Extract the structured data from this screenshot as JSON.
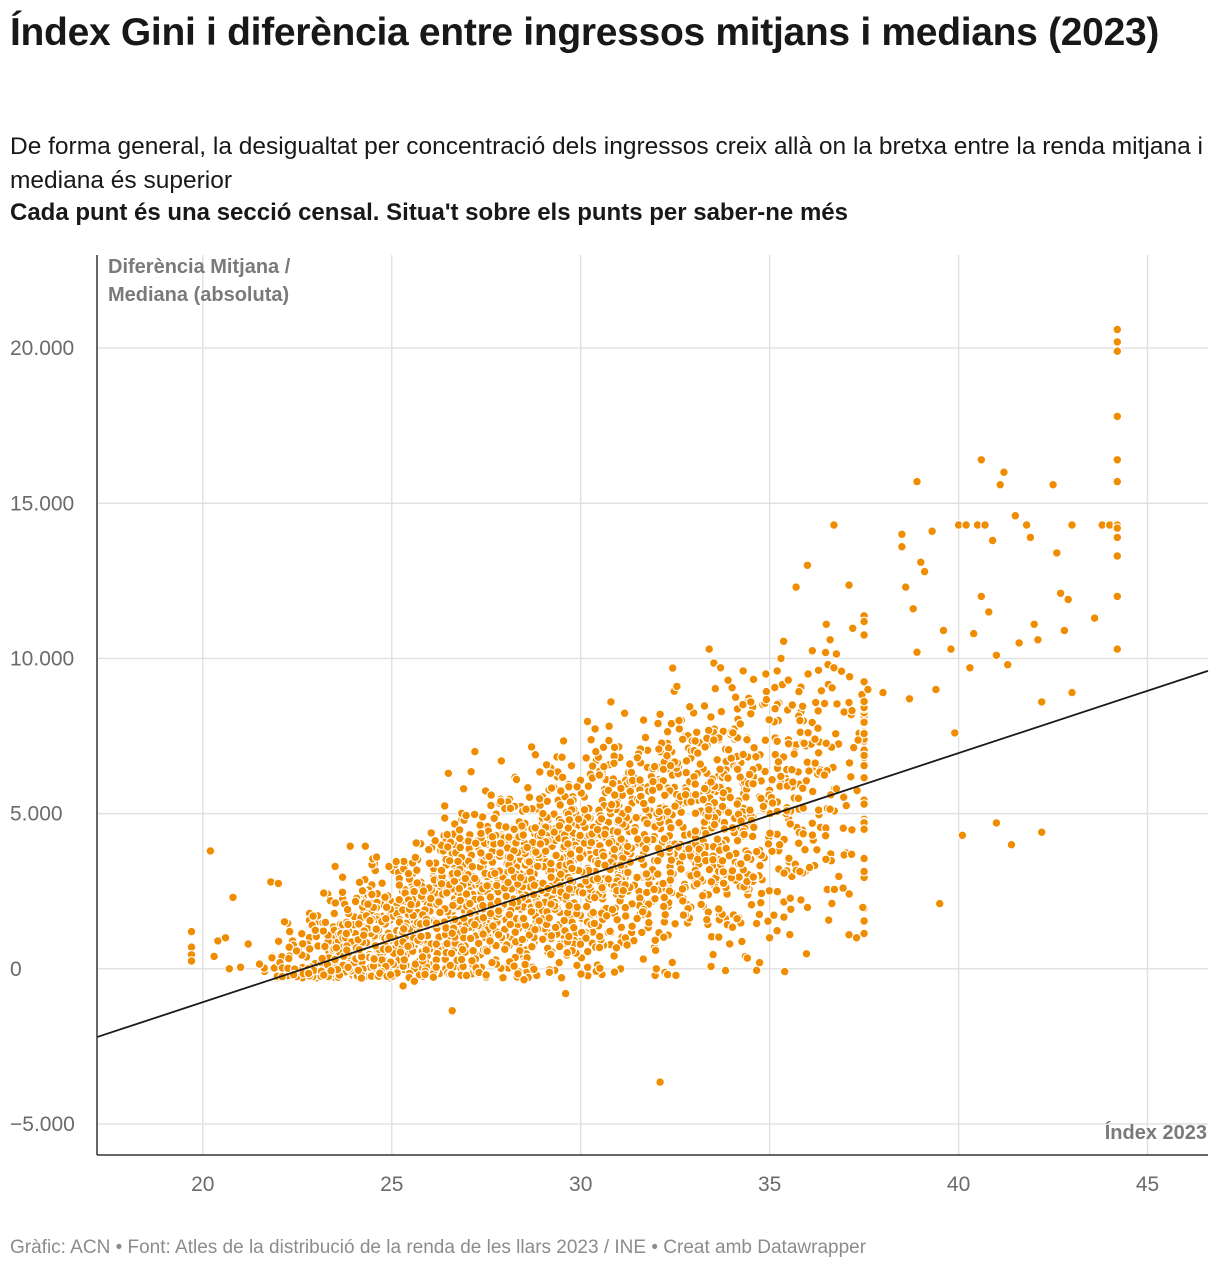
{
  "header": {
    "title": "Índex Gini i diferència entre ingressos mitjans i medians (2023)",
    "subtitle": "De forma general, la desigualtat per concentració dels ingressos creix allà on la bretxa entre la renda mitjana i mediana és superior",
    "note": "Cada punt és una secció censal. Situa't sobre els punts per saber-ne més"
  },
  "footer": {
    "text": "Gràfic: ACN • Font: Atles de la distribució de la renda de les llars 2023 / INE • Creat amb Datawrapper"
  },
  "colors": {
    "points": "#f08c00",
    "trend": "#1a1a1a",
    "grid": "#e0e0e0"
  },
  "chart_data": {
    "type": "scatter",
    "xlabel": "Índex 2023",
    "ylabel_lines": [
      "Diferència Mitjana /",
      "Mediana (absoluta)"
    ],
    "xlim": [
      17.2,
      46.6
    ],
    "ylim": [
      -6000,
      23000
    ],
    "x_ticks": [
      20,
      25,
      30,
      35,
      40,
      45
    ],
    "x_tick_labels": [
      "20",
      "25",
      "30",
      "35",
      "40",
      "45"
    ],
    "y_ticks": [
      20000,
      15000,
      10000,
      5000,
      0,
      -5000
    ],
    "y_tick_labels": [
      "20.000",
      "15.000",
      "10.000",
      "5.000",
      "0",
      "−5.000"
    ],
    "grid": true,
    "trendline": {
      "x": [
        17.2,
        46.6
      ],
      "y": [
        -2200,
        9600
      ]
    },
    "dense_cloud": {
      "approx_count": 2600,
      "x_range": [
        21.5,
        37.5
      ],
      "slope": 430,
      "intercept": -9600
    },
    "points": [
      [
        19.7,
        1200
      ],
      [
        19.7,
        700
      ],
      [
        19.7,
        450
      ],
      [
        19.7,
        250
      ],
      [
        20.2,
        3800
      ],
      [
        20.3,
        400
      ],
      [
        20.4,
        900
      ],
      [
        20.6,
        1000
      ],
      [
        20.7,
        0
      ],
      [
        20.8,
        2300
      ],
      [
        21.0,
        50
      ],
      [
        21.2,
        800
      ],
      [
        21.5,
        150
      ],
      [
        21.8,
        2800
      ],
      [
        22.0,
        2750
      ],
      [
        22.1,
        -250
      ],
      [
        22.3,
        1200
      ],
      [
        22.8,
        -150
      ],
      [
        23.2,
        -200
      ],
      [
        23.5,
        3300
      ],
      [
        23.7,
        2950
      ],
      [
        23.9,
        3950
      ],
      [
        24.2,
        -300
      ],
      [
        24.3,
        3950
      ],
      [
        24.6,
        3600
      ],
      [
        25.3,
        -550
      ],
      [
        25.6,
        -400
      ],
      [
        26.0,
        3400
      ],
      [
        26.4,
        5250
      ],
      [
        26.5,
        6300
      ],
      [
        26.6,
        -1350
      ],
      [
        26.8,
        4200
      ],
      [
        26.9,
        5800
      ],
      [
        27.1,
        6350
      ],
      [
        27.2,
        7000
      ],
      [
        27.5,
        -200
      ],
      [
        27.9,
        6700
      ],
      [
        28.3,
        6100
      ],
      [
        28.5,
        -350
      ],
      [
        28.7,
        7150
      ],
      [
        28.8,
        6900
      ],
      [
        29.0,
        5000
      ],
      [
        29.2,
        6300
      ],
      [
        29.6,
        -800
      ],
      [
        29.7,
        4800
      ],
      [
        30.4,
        7000
      ],
      [
        30.8,
        8600
      ],
      [
        30.9,
        5600
      ],
      [
        31.3,
        6600
      ],
      [
        31.5,
        6800
      ],
      [
        32.0,
        0
      ],
      [
        32.1,
        8200
      ],
      [
        32.1,
        -3650
      ],
      [
        32.4,
        7900
      ],
      [
        32.6,
        8000
      ],
      [
        32.8,
        6700
      ],
      [
        33.1,
        6950
      ],
      [
        33.4,
        10300
      ],
      [
        33.7,
        9700
      ],
      [
        33.9,
        9300
      ],
      [
        34.1,
        8750
      ],
      [
        34.3,
        9600
      ],
      [
        34.5,
        8600
      ],
      [
        34.9,
        9500
      ],
      [
        35.0,
        1000
      ],
      [
        35.2,
        9600
      ],
      [
        35.3,
        10000
      ],
      [
        35.6,
        8500
      ],
      [
        35.7,
        12300
      ],
      [
        35.8,
        8000
      ],
      [
        36.0,
        13000
      ],
      [
        36.2,
        7400
      ],
      [
        36.5,
        11100
      ],
      [
        36.6,
        10600
      ],
      [
        36.7,
        9700
      ],
      [
        36.7,
        14300
      ],
      [
        37.1,
        1100
      ],
      [
        37.3,
        1000
      ],
      [
        37.6,
        9000
      ],
      [
        38.0,
        8900
      ],
      [
        38.5,
        13600
      ],
      [
        38.5,
        14000
      ],
      [
        38.6,
        12300
      ],
      [
        38.7,
        8700
      ],
      [
        38.8,
        11600
      ],
      [
        38.9,
        10200
      ],
      [
        38.9,
        15700
      ],
      [
        39.0,
        13100
      ],
      [
        39.1,
        12800
      ],
      [
        39.3,
        14100
      ],
      [
        39.4,
        9000
      ],
      [
        39.5,
        2100
      ],
      [
        39.6,
        10900
      ],
      [
        39.8,
        10300
      ],
      [
        39.9,
        7600
      ],
      [
        40.0,
        14300
      ],
      [
        40.1,
        4300
      ],
      [
        40.2,
        14300
      ],
      [
        40.3,
        9700
      ],
      [
        40.4,
        10800
      ],
      [
        40.5,
        14300
      ],
      [
        40.6,
        12000
      ],
      [
        40.6,
        16400
      ],
      [
        40.7,
        14300
      ],
      [
        40.8,
        11500
      ],
      [
        40.9,
        13800
      ],
      [
        41.0,
        10100
      ],
      [
        41.0,
        4700
      ],
      [
        41.1,
        15600
      ],
      [
        41.2,
        16000
      ],
      [
        41.3,
        9800
      ],
      [
        41.4,
        4000
      ],
      [
        41.5,
        14600
      ],
      [
        41.6,
        10500
      ],
      [
        41.8,
        14300
      ],
      [
        41.9,
        13900
      ],
      [
        42.0,
        11100
      ],
      [
        42.1,
        10600
      ],
      [
        42.2,
        8600
      ],
      [
        42.2,
        4400
      ],
      [
        42.5,
        15600
      ],
      [
        42.6,
        13400
      ],
      [
        42.7,
        12100
      ],
      [
        42.8,
        10900
      ],
      [
        42.9,
        11900
      ],
      [
        43.0,
        14300
      ],
      [
        43.0,
        8900
      ],
      [
        43.6,
        11300
      ],
      [
        43.8,
        14300
      ],
      [
        44.0,
        14300
      ],
      [
        44.2,
        20600
      ],
      [
        44.2,
        20200
      ],
      [
        44.2,
        19900
      ],
      [
        44.2,
        17800
      ],
      [
        44.2,
        16400
      ],
      [
        44.2,
        15700
      ],
      [
        44.2,
        14300
      ],
      [
        44.2,
        14200
      ],
      [
        44.2,
        13900
      ],
      [
        44.2,
        13300
      ],
      [
        44.2,
        12000
      ],
      [
        44.2,
        10300
      ]
    ]
  }
}
